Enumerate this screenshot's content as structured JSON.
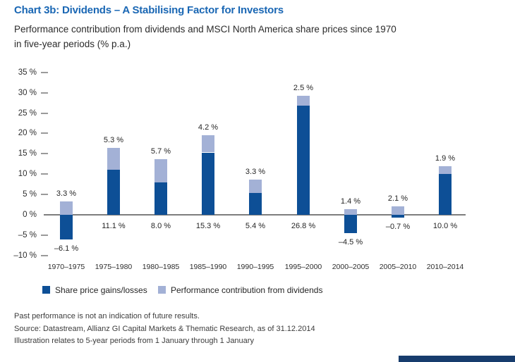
{
  "chart_data": {
    "type": "bar",
    "stacked": true,
    "title": "Chart 3b: Dividends – A Stabilising Factor for Investors",
    "subtitle_line1": "Performance contribution from dividends and MSCI North America share prices since 1970",
    "subtitle_line2": "in five-year periods (% p.a.)",
    "categories": [
      "1970–1975",
      "1975–1980",
      "1980–1985",
      "1985–1990",
      "1990–1995",
      "1995–2000",
      "2000–2005",
      "2005–2010",
      "2010–2014"
    ],
    "series": [
      {
        "name": "Share price gains/losses",
        "color": "#0d4f96",
        "values": [
          -6.1,
          11.1,
          8.0,
          15.3,
          5.4,
          26.8,
          -4.5,
          -0.7,
          10.0
        ],
        "labels": [
          "–6.1 %",
          "11.1 %",
          "8.0 %",
          "15.3 %",
          "5.4 %",
          "26.8 %",
          "–4.5 %",
          "–0.7 %",
          "10.0 %"
        ]
      },
      {
        "name": "Performance contribution from dividends",
        "color": "#a3b1d6",
        "values": [
          3.3,
          5.3,
          5.7,
          4.2,
          3.3,
          2.5,
          1.4,
          2.1,
          1.9
        ],
        "labels": [
          "3.3 %",
          "5.3 %",
          "5.7 %",
          "4.2 %",
          "3.3 %",
          "2.5 %",
          "1.4 %",
          "2.1 %",
          "1.9 %"
        ]
      }
    ],
    "y_ticks": [
      {
        "value": 35,
        "label": "35 %"
      },
      {
        "value": 30,
        "label": "30 %"
      },
      {
        "value": 25,
        "label": "25 %"
      },
      {
        "value": 20,
        "label": "20 %"
      },
      {
        "value": 15,
        "label": "15 %"
      },
      {
        "value": 10,
        "label": "10 %"
      },
      {
        "value": 5,
        "label": "5 %"
      },
      {
        "value": 0,
        "label": "0 %"
      },
      {
        "value": -5,
        "label": "–5 %"
      },
      {
        "value": -10,
        "label": "–10 %"
      }
    ],
    "ylim": [
      -10,
      35
    ],
    "xlabel": "",
    "ylabel": "",
    "grid": false,
    "legend_position": "bottom",
    "title_color": "#1a67b4",
    "axis_color": "#7d7d7d",
    "bottom_strip_color": "#173c6d"
  },
  "footer": {
    "disclaimer": "Past performance is not an indication of future results.",
    "source": "Source: Datastream, Allianz GI Capital Markets & Thematic Research, as of 31.12.2014",
    "note": "Illustration relates to 5-year periods from 1 January through 1 January"
  }
}
